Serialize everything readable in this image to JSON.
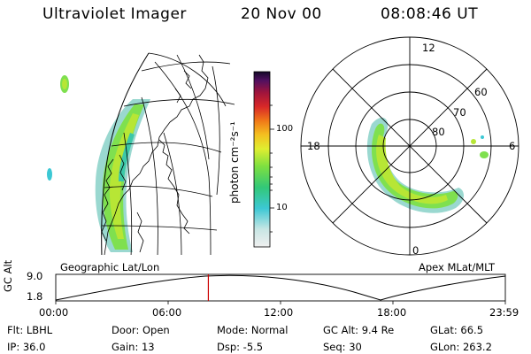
{
  "header": {
    "title": "Ultraviolet Imager",
    "date": "20 Nov 00",
    "time": "08:08:46 UT"
  },
  "colorbar": {
    "label": "photon cm⁻²s⁻¹",
    "ticks": [
      "100",
      "10"
    ]
  },
  "left_panel": {
    "caption": "Geographic Lat/Lon"
  },
  "right_panel": {
    "caption": "Apex MLat/MLT",
    "clock_labels": {
      "top": "12",
      "left": "18",
      "right": "6",
      "bottom": "0"
    },
    "ring_labels": [
      "60",
      "70",
      "80"
    ]
  },
  "timeline": {
    "ylabel": "GC Alt",
    "y_ticks": [
      "9.0",
      "1.8"
    ],
    "x_ticks": [
      "00:00",
      "06:00",
      "12:00",
      "18:00",
      "23:59"
    ],
    "marker_time_hours": 8.146
  },
  "info": {
    "filter": "Flt: LBHL",
    "ip": "IP: 36.0",
    "door": "Door: Open",
    "gain": "Gain: 13",
    "mode": "Mode: Normal",
    "dsp": "Dsp:    -5.5",
    "gc_alt": "GC Alt: 9.4 Re",
    "seq": "Seq: 30",
    "glat": "GLat:   66.5",
    "glon": "GLon: 263.2"
  },
  "colors": {
    "marker": "#cc0000",
    "aurora_dim": "#9ad8d0",
    "aurora_mid": "#7fe04f",
    "aurora_bright": "#b7e635"
  }
}
